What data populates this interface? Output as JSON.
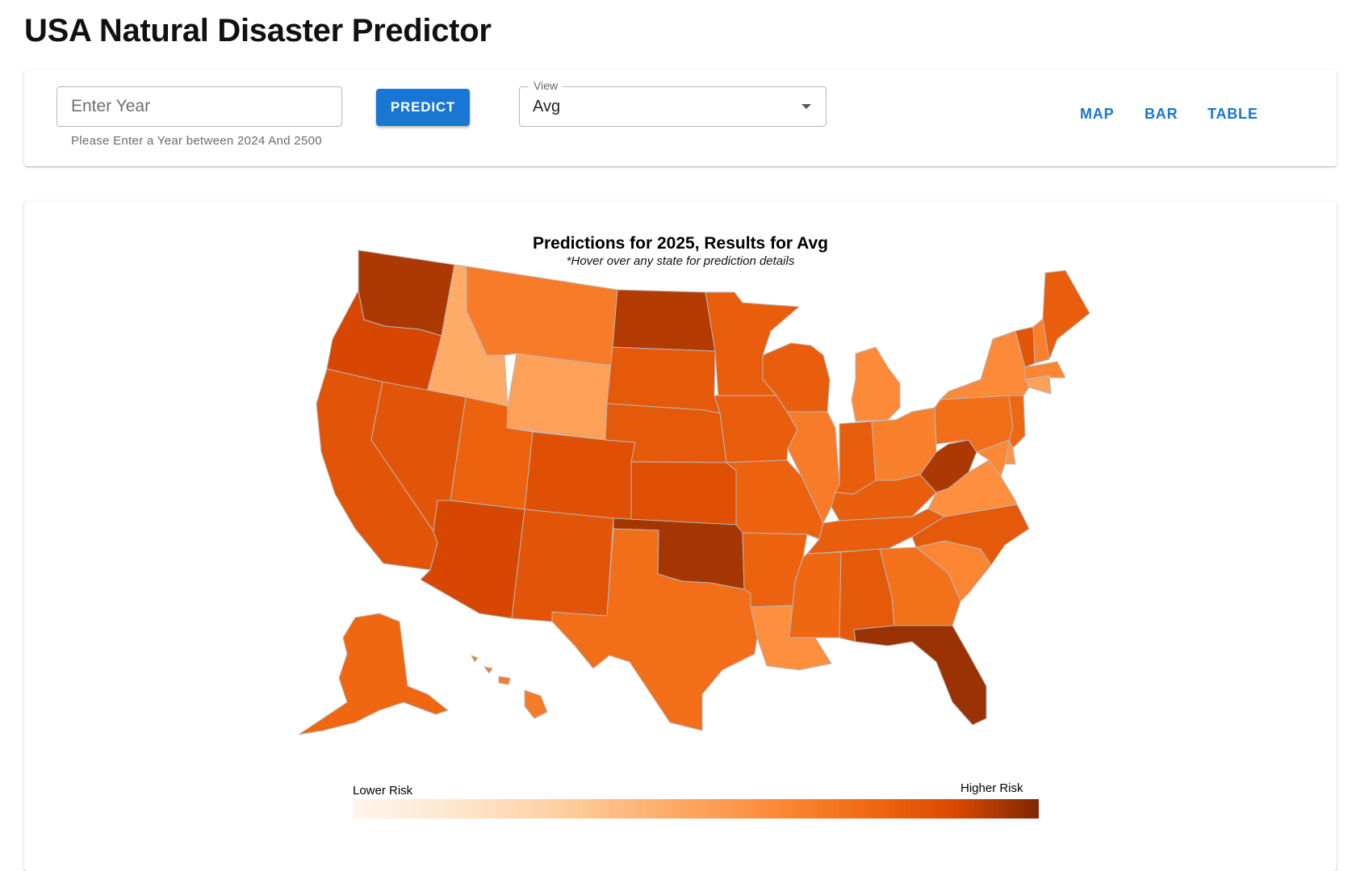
{
  "header": {
    "title": "USA Natural Disaster Predictor"
  },
  "controls": {
    "year_input": {
      "placeholder": "Enter Year",
      "value": ""
    },
    "year_helper": "Please Enter a Year between 2024 And 2500",
    "predict_label": "PREDICT",
    "view_select": {
      "label": "View",
      "value": "Avg"
    },
    "nav": [
      {
        "label": "MAP"
      },
      {
        "label": "BAR"
      },
      {
        "label": "TABLE"
      }
    ]
  },
  "map": {
    "title": "Predictions for 2025, Results for Avg",
    "subtitle": "*Hover over any state for prediction details",
    "legend": {
      "low_label": "Lower Risk",
      "high_label": "Higher Risk",
      "scale_colors": [
        "#fff5eb",
        "#fdd0a2",
        "#fdae6b",
        "#fd8d3c",
        "#f16913",
        "#d94801",
        "#a63603",
        "#7f2704"
      ]
    },
    "states": [
      {
        "id": "WA",
        "level": 0.84
      },
      {
        "id": "OR",
        "level": 0.72
      },
      {
        "id": "CA",
        "level": 0.66
      },
      {
        "id": "ID",
        "level": 0.3
      },
      {
        "id": "NV",
        "level": 0.66
      },
      {
        "id": "MT",
        "level": 0.5
      },
      {
        "id": "WY",
        "level": 0.34
      },
      {
        "id": "UT",
        "level": 0.6
      },
      {
        "id": "AZ",
        "level": 0.72
      },
      {
        "id": "CO",
        "level": 0.68
      },
      {
        "id": "NM",
        "level": 0.66
      },
      {
        "id": "ND",
        "level": 0.82
      },
      {
        "id": "SD",
        "level": 0.64
      },
      {
        "id": "NE",
        "level": 0.64
      },
      {
        "id": "KS",
        "level": 0.68
      },
      {
        "id": "OK",
        "level": 0.86
      },
      {
        "id": "TX",
        "level": 0.55
      },
      {
        "id": "MN",
        "level": 0.62
      },
      {
        "id": "IA",
        "level": 0.62
      },
      {
        "id": "MO",
        "level": 0.6
      },
      {
        "id": "AR",
        "level": 0.6
      },
      {
        "id": "LA",
        "level": 0.42
      },
      {
        "id": "WI",
        "level": 0.62
      },
      {
        "id": "IL",
        "level": 0.5
      },
      {
        "id": "MI",
        "level": 0.44
      },
      {
        "id": "IN",
        "level": 0.62
      },
      {
        "id": "OH",
        "level": 0.48
      },
      {
        "id": "KY",
        "level": 0.62
      },
      {
        "id": "TN",
        "level": 0.62
      },
      {
        "id": "MS",
        "level": 0.58
      },
      {
        "id": "AL",
        "level": 0.64
      },
      {
        "id": "GA",
        "level": 0.54
      },
      {
        "id": "FL",
        "level": 0.9
      },
      {
        "id": "SC",
        "level": 0.46
      },
      {
        "id": "NC",
        "level": 0.64
      },
      {
        "id": "VA",
        "level": 0.42
      },
      {
        "id": "WV",
        "level": 0.84
      },
      {
        "id": "PA",
        "level": 0.55
      },
      {
        "id": "NY",
        "level": 0.44
      },
      {
        "id": "VT",
        "level": 0.66
      },
      {
        "id": "NH",
        "level": 0.48
      },
      {
        "id": "ME",
        "level": 0.62
      },
      {
        "id": "MA",
        "level": 0.46
      },
      {
        "id": "CT",
        "level": 0.34
      },
      {
        "id": "NJ",
        "level": 0.58
      },
      {
        "id": "MD",
        "level": 0.45
      },
      {
        "id": "DE",
        "level": 0.4
      },
      {
        "id": "AK",
        "level": 0.58
      },
      {
        "id": "HI",
        "level": 0.5
      }
    ]
  }
}
